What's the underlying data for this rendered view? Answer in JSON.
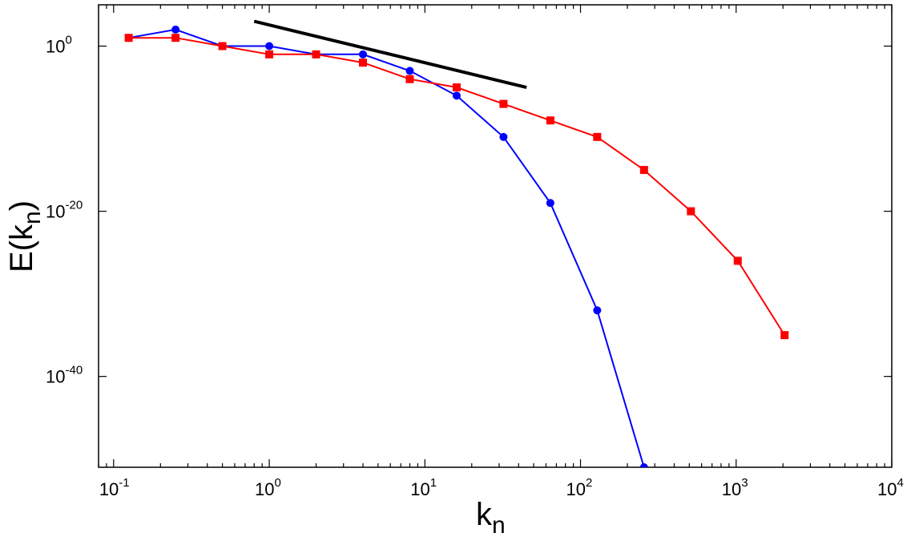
{
  "chart_data": {
    "type": "line",
    "title": "",
    "xlabel": {
      "base": "k",
      "sub": "n"
    },
    "ylabel": {
      "pre": "E(k",
      "sub": "n",
      "post": ")"
    },
    "xscale": "log",
    "yscale": "log",
    "xlim": [
      0.08,
      10000
    ],
    "ylim": [
      1e-51,
      100000.0
    ],
    "x_ticks": [
      {
        "base": "10",
        "exp": "-1",
        "value": 0.1
      },
      {
        "base": "10",
        "exp": "0",
        "value": 1
      },
      {
        "base": "10",
        "exp": "1",
        "value": 10
      },
      {
        "base": "10",
        "exp": "2",
        "value": 100
      },
      {
        "base": "10",
        "exp": "3",
        "value": 1000
      },
      {
        "base": "10",
        "exp": "4",
        "value": 10000
      }
    ],
    "y_ticks": [
      {
        "base": "10",
        "exp": "0",
        "value": 1
      },
      {
        "base": "10",
        "exp": "-20",
        "value": 1e-20
      },
      {
        "base": "10",
        "exp": "-40",
        "value": 1e-40
      }
    ],
    "grid": false,
    "legend": "none",
    "series": [
      {
        "color": "#0000ff",
        "marker": "circle",
        "x": [
          0.125,
          0.25,
          0.5,
          1,
          2,
          4,
          8,
          16,
          32,
          64,
          128,
          256
        ],
        "y": [
          10.0,
          100.0,
          1.0,
          1.0,
          0.1,
          0.1,
          0.001,
          1e-06,
          1e-11,
          1e-19,
          1e-32,
          1e-51
        ]
      },
      {
        "color": "#ff0000",
        "marker": "square",
        "x": [
          0.125,
          0.25,
          0.5,
          1,
          2,
          4,
          8,
          16,
          32,
          64,
          128,
          256,
          512,
          1024,
          2048
        ],
        "y": [
          10.0,
          10.0,
          1.0,
          0.1,
          0.1,
          0.01,
          0.0001,
          1e-05,
          1e-07,
          1e-09,
          1e-11,
          1e-15,
          1e-20,
          1e-26,
          1e-35
        ]
      }
    ],
    "reference_line": {
      "color": "#000000",
      "x": [
        0.8,
        45
      ],
      "y": [
        1000.0,
        1e-05
      ]
    }
  }
}
